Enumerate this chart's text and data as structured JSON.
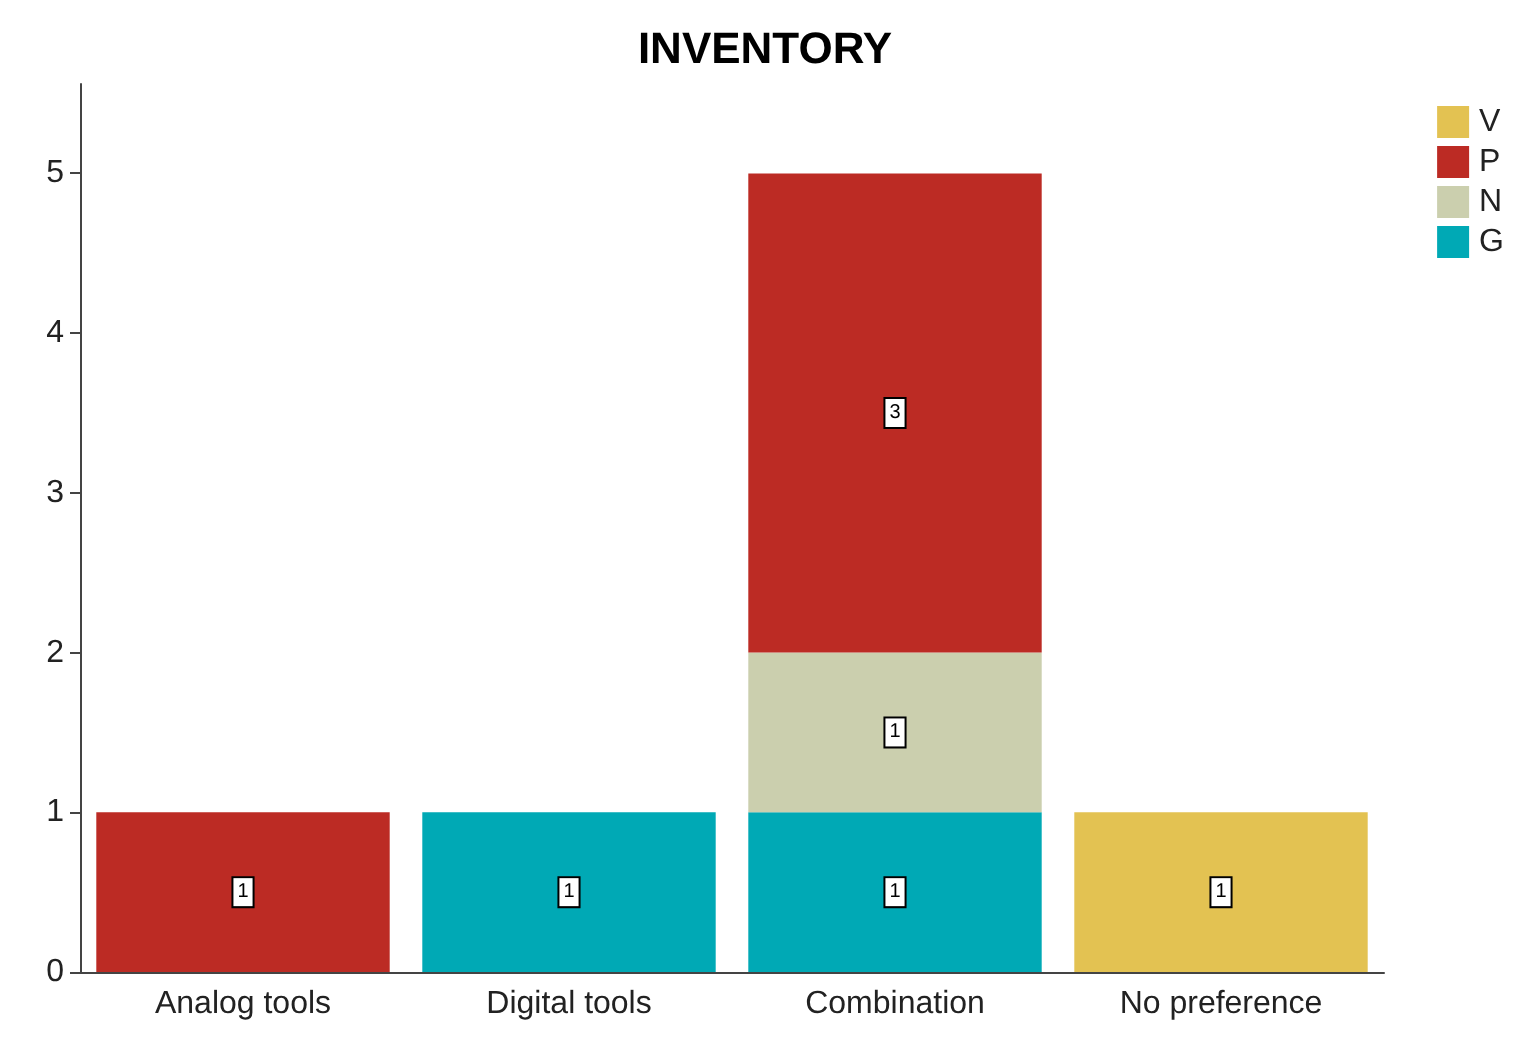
{
  "chart_data": {
    "type": "bar",
    "title": "INVENTORY",
    "categories": [
      "Analog tools",
      "Digital tools",
      "Combination",
      "No preference"
    ],
    "stacked": true,
    "data_labels": true,
    "legend": "right",
    "grid": false,
    "ylim": [
      0,
      5.56
    ],
    "yticks": [
      0,
      1,
      2,
      3,
      4,
      5
    ],
    "series": [
      {
        "name": "G",
        "color": "#00a9b5",
        "values": [
          null,
          1,
          1,
          null
        ]
      },
      {
        "name": "N",
        "color": "#cbcfae",
        "values": [
          null,
          null,
          1,
          null
        ]
      },
      {
        "name": "P",
        "color": "#bc2b24",
        "values": [
          1,
          null,
          3,
          null
        ]
      },
      {
        "name": "V",
        "color": "#e3c252",
        "values": [
          null,
          null,
          null,
          1
        ]
      }
    ]
  }
}
